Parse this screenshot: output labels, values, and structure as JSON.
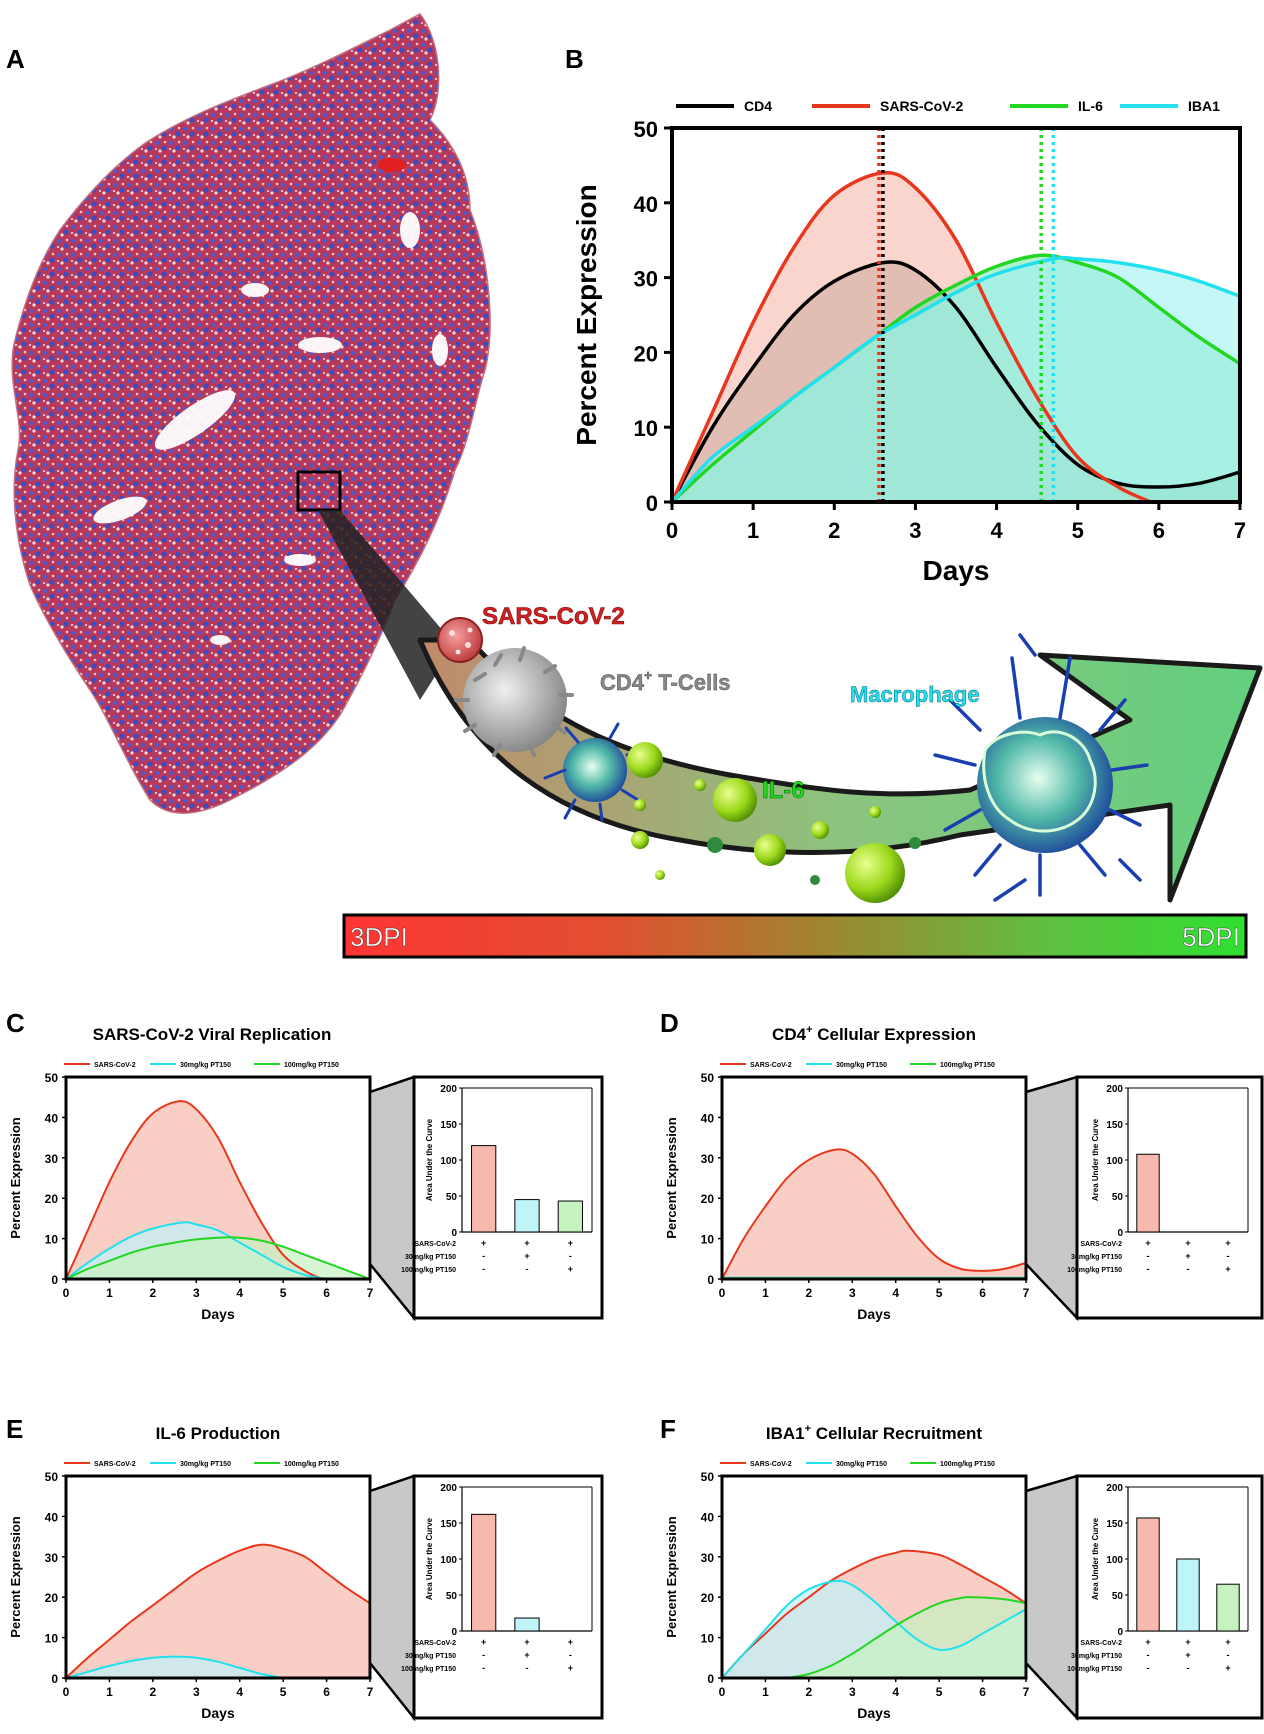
{
  "panel_labels": {
    "A": "A",
    "B": "B",
    "C": "C",
    "D": "D",
    "E": "E",
    "F": "F"
  },
  "illustration": {
    "virus_label": "SARS-CoV-2",
    "cd4_label_main": "CD4",
    "cd4_label_sup": "+",
    "cd4_label_rest": " T-Cells",
    "macrophage_label": "Macrophage",
    "il6_label": "IL-6",
    "gradient_left": "3DPI",
    "gradient_right": "5DPI"
  },
  "colors": {
    "sars": "#e8371d",
    "cd4": "#000000",
    "il6": "#22d622",
    "iba1": "#22e0ee",
    "pt30": "#22e0ee",
    "pt100": "#22d622",
    "sars_fill": "#f7b9ad",
    "pt30_fill": "#bff4f8",
    "pt100_fill": "#c6f2c0",
    "tissue_red": "#c0304a",
    "tissue_blue": "#4050c0"
  },
  "chart_data": [
    {
      "id": "B",
      "type": "area",
      "title": "",
      "xlabel": "Days",
      "ylabel": "Percent Expression",
      "xlim": [
        0,
        7
      ],
      "ylim": [
        0,
        50
      ],
      "xticks": [
        "0",
        "1",
        "2",
        "3",
        "4",
        "5",
        "6",
        "7"
      ],
      "yticks": [
        "0",
        "10",
        "20",
        "30",
        "40",
        "50"
      ],
      "legend": [
        "CD4",
        "SARS-CoV-2",
        "IL-6",
        "IBA1"
      ],
      "series": [
        {
          "name": "CD4",
          "color": "cd4",
          "fill": "#9b9b8f",
          "x": [
            0,
            0.5,
            1,
            1.5,
            2,
            2.6,
            3,
            3.5,
            4,
            4.5,
            5,
            5.5,
            6,
            6.5,
            7
          ],
          "y": [
            0,
            10,
            18,
            25,
            29.5,
            32,
            31,
            26,
            18,
            10.5,
            5,
            2.5,
            2,
            2.5,
            4
          ]
        },
        {
          "name": "SARS-CoV-2",
          "color": "sars",
          "fill": "#f7b9ad",
          "x": [
            0,
            0.5,
            1,
            1.5,
            2,
            2.6,
            3,
            3.5,
            4,
            4.5,
            5,
            5.5,
            5.9
          ],
          "y": [
            0,
            12,
            24,
            34,
            41,
            44,
            42,
            35,
            24,
            14,
            6,
            2,
            0
          ]
        },
        {
          "name": "IL-6",
          "color": "il6",
          "fill": "#7ee8b0",
          "x": [
            0,
            0.5,
            1,
            1.5,
            2,
            2.5,
            3,
            3.5,
            4,
            4.55,
            5,
            5.5,
            6,
            6.5,
            7
          ],
          "y": [
            0,
            5,
            9.5,
            14,
            18,
            22,
            26,
            29,
            31.5,
            33,
            32,
            30,
            26,
            22,
            18.5
          ]
        },
        {
          "name": "IBA1",
          "color": "iba1",
          "fill": "#9ff2f0",
          "x": [
            0,
            0.5,
            1,
            1.5,
            2,
            2.5,
            3,
            3.5,
            4,
            4.7,
            5,
            5.5,
            6,
            6.5,
            7
          ],
          "y": [
            0,
            6,
            10,
            14,
            18,
            22,
            25,
            28,
            30.5,
            32.5,
            32.5,
            32,
            31,
            29.5,
            27.5
          ]
        }
      ],
      "vlines": [
        {
          "x": 2.55,
          "color": "sars"
        },
        {
          "x": 2.6,
          "color": "cd4"
        },
        {
          "x": 4.55,
          "color": "il6"
        },
        {
          "x": 4.7,
          "color": "iba1"
        }
      ]
    },
    {
      "id": "C",
      "type": "area",
      "title": "SARS-CoV-2 Viral Replication",
      "xlabel": "Days",
      "ylabel": "Percent Expression",
      "xlim": [
        0,
        7
      ],
      "ylim": [
        0,
        50
      ],
      "xticks": [
        "0",
        "1",
        "2",
        "3",
        "4",
        "5",
        "6",
        "7"
      ],
      "yticks": [
        "0",
        "10",
        "20",
        "30",
        "40",
        "50"
      ],
      "legend": [
        "SARS-CoV-2",
        "30mg/kg PT150",
        "100mg/kg PT150"
      ],
      "series": [
        {
          "name": "SARS-CoV-2",
          "color": "sars",
          "x": [
            0,
            0.5,
            1,
            1.5,
            2,
            2.6,
            3,
            3.5,
            4,
            4.5,
            5,
            5.5,
            5.9
          ],
          "y": [
            0,
            12,
            24,
            34,
            41,
            44,
            42,
            35,
            24,
            14,
            6,
            2,
            0
          ]
        },
        {
          "name": "30mg/kg PT150",
          "color": "pt30",
          "x": [
            0,
            0.5,
            1,
            1.5,
            2,
            2.7,
            3,
            3.5,
            4,
            4.5,
            5,
            5.5,
            6
          ],
          "y": [
            0,
            4,
            7.5,
            10.5,
            12.5,
            14,
            13.5,
            12,
            9,
            6,
            3,
            1,
            0
          ]
        },
        {
          "name": "100mg/kg PT150",
          "color": "pt100",
          "x": [
            0,
            0.5,
            1,
            1.5,
            2,
            2.5,
            3,
            3.7,
            4,
            4.5,
            5,
            5.5,
            6,
            6.5,
            7
          ],
          "y": [
            0,
            2.5,
            4.5,
            6.5,
            8,
            9,
            9.8,
            10.3,
            10.2,
            9.5,
            8,
            6,
            4,
            2,
            0
          ]
        }
      ],
      "inset": {
        "ylabel": "Area Under the Curve",
        "ylim": [
          0,
          200
        ],
        "yticks": [
          "0",
          "50",
          "100",
          "150",
          "200"
        ],
        "values": [
          120,
          45,
          43
        ],
        "row_labels": [
          "SARS-CoV-2",
          "30mg/kg PT150",
          "100mg/kg PT150"
        ],
        "signs": [
          [
            "+",
            "+",
            "+"
          ],
          [
            "-",
            "+",
            "-"
          ],
          [
            "-",
            "-",
            "+"
          ]
        ]
      }
    },
    {
      "id": "D",
      "type": "area",
      "title_main": "CD4",
      "title_sup": "+",
      "title_rest": " Cellular Expression",
      "xlabel": "Days",
      "ylabel": "Percent Expression",
      "xlim": [
        0,
        7
      ],
      "ylim": [
        0,
        50
      ],
      "xticks": [
        "0",
        "1",
        "2",
        "3",
        "4",
        "5",
        "6",
        "7"
      ],
      "yticks": [
        "0",
        "10",
        "20",
        "30",
        "40",
        "50"
      ],
      "legend": [
        "SARS-CoV-2",
        "30mg/kg PT150",
        "100mg/kg PT150"
      ],
      "series": [
        {
          "name": "SARS-CoV-2",
          "color": "sars",
          "x": [
            0,
            0.5,
            1,
            1.5,
            2,
            2.6,
            3,
            3.5,
            4,
            4.5,
            5,
            5.5,
            6,
            6.5,
            7
          ],
          "y": [
            0,
            10,
            18,
            25,
            29.5,
            32,
            31,
            26,
            18,
            10.5,
            5,
            2.5,
            2,
            2.5,
            4
          ]
        },
        {
          "name": "30mg/kg PT150",
          "color": "pt30",
          "x": [
            0,
            7
          ],
          "y": [
            0.3,
            0.3
          ]
        },
        {
          "name": "100mg/kg PT150",
          "color": "pt100",
          "x": [
            0,
            7
          ],
          "y": [
            0.2,
            0.2
          ]
        }
      ],
      "inset": {
        "ylabel": "Area Under the Curve",
        "ylim": [
          0,
          200
        ],
        "yticks": [
          "0",
          "50",
          "100",
          "150",
          "200"
        ],
        "values": [
          108,
          0,
          0
        ],
        "row_labels": [
          "SARS-CoV-2",
          "30mg/kg PT150",
          "100mg/kg PT150"
        ],
        "signs": [
          [
            "+",
            "+",
            "+"
          ],
          [
            "-",
            "+",
            "-"
          ],
          [
            "-",
            "-",
            "+"
          ]
        ]
      }
    },
    {
      "id": "E",
      "type": "area",
      "title": "IL-6 Production",
      "xlabel": "Days",
      "ylabel": "Percent Expression",
      "xlim": [
        0,
        7
      ],
      "ylim": [
        0,
        50
      ],
      "xticks": [
        "0",
        "1",
        "2",
        "3",
        "4",
        "5",
        "6",
        "7"
      ],
      "yticks": [
        "0",
        "10",
        "20",
        "30",
        "40",
        "50"
      ],
      "legend": [
        "SARS-CoV-2",
        "30mg/kg PT150",
        "100mg/kg PT150"
      ],
      "series": [
        {
          "name": "SARS-CoV-2",
          "color": "sars",
          "x": [
            0,
            0.5,
            1,
            1.5,
            2,
            2.5,
            3,
            3.5,
            4,
            4.5,
            5,
            5.5,
            6,
            6.5,
            7
          ],
          "y": [
            0,
            5,
            9.5,
            14,
            18,
            22,
            26,
            29,
            31.5,
            33,
            32,
            30,
            26,
            22,
            18.5
          ]
        },
        {
          "name": "30mg/kg PT150",
          "color": "pt30",
          "x": [
            0,
            0.5,
            1,
            1.5,
            2,
            2.5,
            3,
            3.5,
            4,
            4.5,
            5
          ],
          "y": [
            0,
            1.5,
            3,
            4.2,
            5,
            5.3,
            5,
            4,
            2.5,
            1,
            0
          ]
        },
        {
          "name": "100mg/kg PT150",
          "color": "pt100",
          "x": [
            0,
            7
          ],
          "y": [
            0.1,
            0.1
          ]
        }
      ],
      "inset": {
        "ylabel": "Area Under the Curve",
        "ylim": [
          0,
          200
        ],
        "yticks": [
          "0",
          "50",
          "100",
          "150",
          "200"
        ],
        "values": [
          162,
          18,
          0
        ],
        "row_labels": [
          "SARS-CoV-2",
          "30mg/kg PT150",
          "100mg/kg PT150"
        ],
        "signs": [
          [
            "+",
            "+",
            "+"
          ],
          [
            "-",
            "+",
            "-"
          ],
          [
            "-",
            "-",
            "+"
          ]
        ]
      }
    },
    {
      "id": "F",
      "type": "area",
      "title_main": "IBA1",
      "title_sup": "+",
      "title_rest": " Cellular Recruitment",
      "xlabel": "Days",
      "ylabel": "Percent Expression",
      "xlim": [
        0,
        7
      ],
      "ylim": [
        0,
        50
      ],
      "xticks": [
        "0",
        "1",
        "2",
        "3",
        "4",
        "5",
        "6",
        "7"
      ],
      "yticks": [
        "0",
        "10",
        "20",
        "30",
        "40",
        "50"
      ],
      "legend": [
        "SARS-CoV-2",
        "30mg/kg PT150",
        "100mg/kg PT150"
      ],
      "series": [
        {
          "name": "SARS-CoV-2",
          "color": "sars",
          "x": [
            0,
            0.5,
            1,
            1.5,
            2,
            2.5,
            3,
            3.5,
            4,
            4.3,
            5,
            5.5,
            6,
            6.5,
            7
          ],
          "y": [
            0,
            6,
            11,
            16,
            20,
            24,
            27,
            29.5,
            31,
            31.5,
            30.5,
            28,
            25,
            22,
            18.5
          ]
        },
        {
          "name": "30mg/kg PT150",
          "color": "pt30",
          "x": [
            0,
            0.5,
            1,
            1.5,
            2,
            2.6,
            3,
            3.5,
            4,
            4.5,
            5,
            5.5,
            6,
            6.5,
            7
          ],
          "y": [
            0,
            6,
            12,
            18,
            22,
            24,
            23,
            19,
            14,
            9.5,
            7,
            8,
            11,
            14,
            17
          ]
        },
        {
          "name": "100mg/kg PT150",
          "color": "pt100",
          "x": [
            1.5,
            2,
            2.5,
            3,
            3.5,
            4,
            4.5,
            5,
            5.5,
            5.8,
            6.5,
            7
          ],
          "y": [
            0,
            1,
            3,
            6,
            9.5,
            13,
            16,
            18.5,
            19.8,
            20,
            19.5,
            18.5
          ]
        }
      ],
      "inset": {
        "ylabel": "Area Under the Curve",
        "ylim": [
          0,
          200
        ],
        "yticks": [
          "0",
          "50",
          "100",
          "150",
          "200"
        ],
        "values": [
          157,
          100,
          65
        ],
        "row_labels": [
          "SARS-CoV-2",
          "30mg/kg PT150",
          "100mg/kg PT150"
        ],
        "signs": [
          [
            "+",
            "+",
            "+"
          ],
          [
            "-",
            "+",
            "-"
          ],
          [
            "-",
            "-",
            "+"
          ]
        ]
      }
    }
  ]
}
